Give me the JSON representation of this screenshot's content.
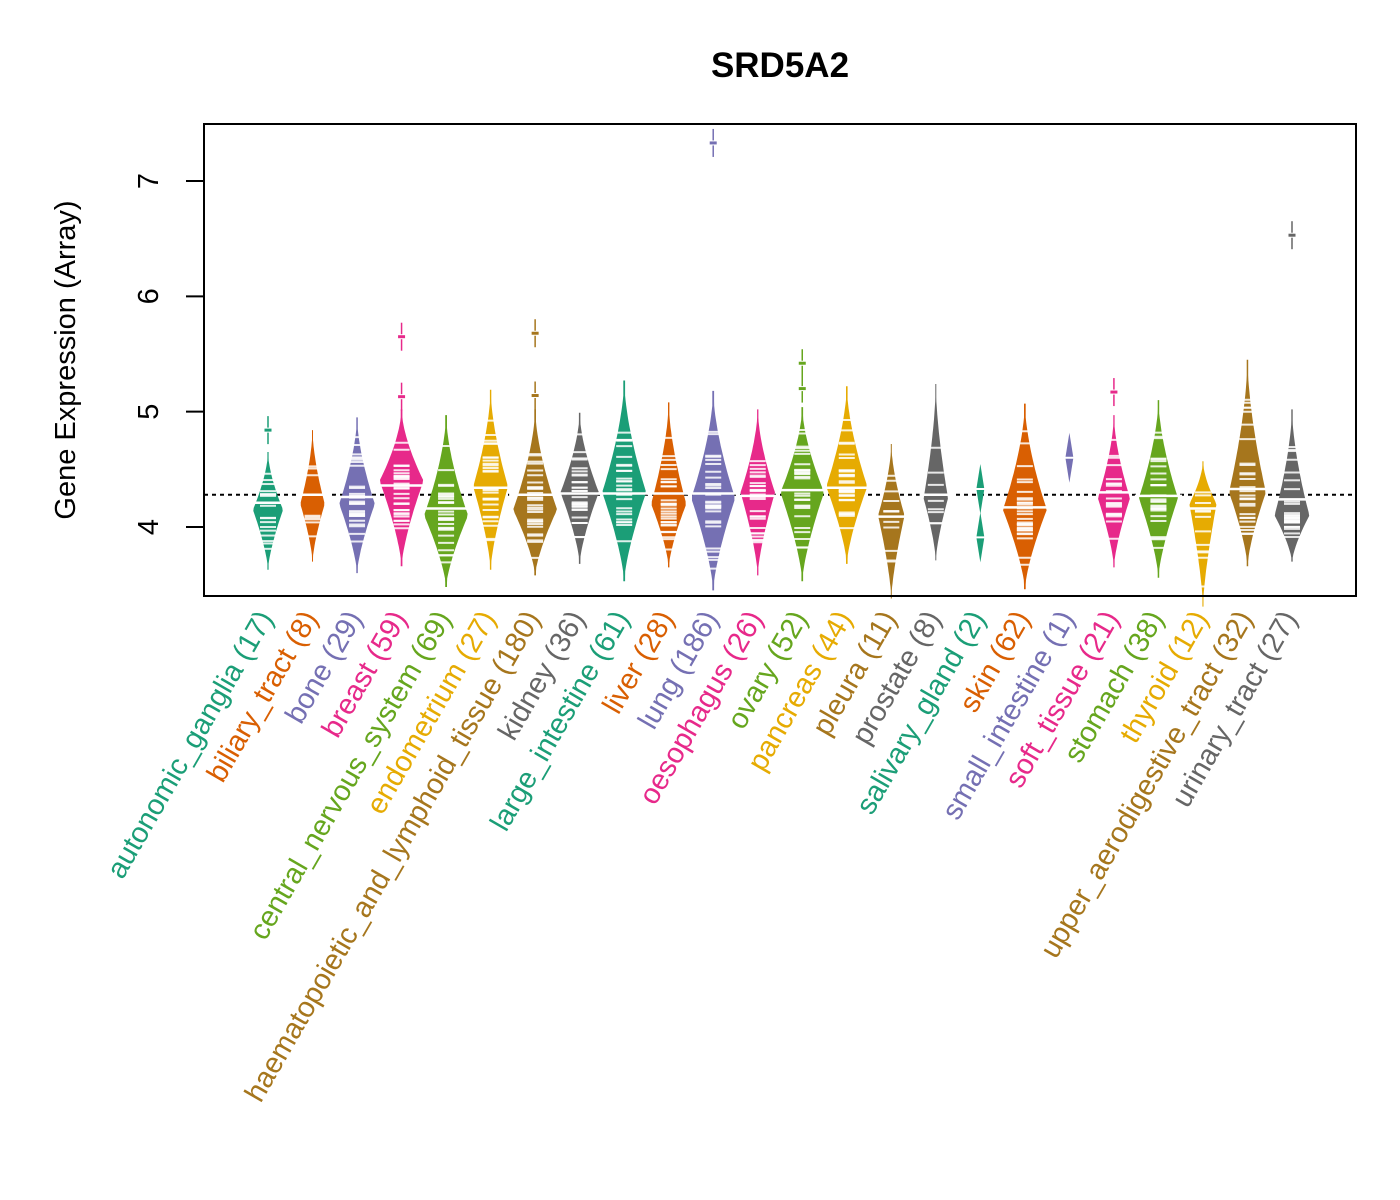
{
  "chart_data": {
    "type": "beanplot",
    "title": "SRD5A2",
    "xlabel": "",
    "ylabel": "Gene Expression (Array)",
    "ylim": [
      3.43,
      7.5
    ],
    "yticks": [
      4,
      5,
      6,
      7
    ],
    "grid": false,
    "reference_line": {
      "value": 4.28,
      "style": "dotted",
      "color": "#000000"
    },
    "label_rotation_deg": 60,
    "groups": [
      {
        "name": "autonomic_ganglia",
        "n": 17,
        "color": "#1B9E77",
        "median": 4.21,
        "min": 3.75,
        "max": 4.53,
        "peak": 4.15,
        "outliers": [
          4.84
        ]
      },
      {
        "name": "biliary_tract",
        "n": 8,
        "color": "#D95F02",
        "median": 4.28,
        "min": 3.82,
        "max": 4.72,
        "peak": 4.2,
        "outliers": []
      },
      {
        "name": "bone",
        "n": 29,
        "color": "#7570B3",
        "median": 4.26,
        "min": 3.72,
        "max": 4.83,
        "peak": 4.2,
        "outliers": []
      },
      {
        "name": "breast",
        "n": 59,
        "color": "#E7298A",
        "median": 4.36,
        "min": 3.78,
        "max": 4.9,
        "peak": 4.4,
        "outliers": [
          5.13,
          5.65
        ]
      },
      {
        "name": "central_nervous_system",
        "n": 69,
        "color": "#66A61E",
        "median": 4.16,
        "min": 3.6,
        "max": 4.85,
        "peak": 4.1,
        "outliers": []
      },
      {
        "name": "endometrium",
        "n": 27,
        "color": "#E6AB02",
        "median": 4.34,
        "min": 3.75,
        "max": 5.07,
        "peak": 4.35,
        "outliers": []
      },
      {
        "name": "haematopoietic_and_lymphoid_tissue",
        "n": 180,
        "color": "#A6761D",
        "median": 4.28,
        "min": 3.7,
        "max": 4.9,
        "peak": 4.15,
        "outliers": [
          5.14,
          5.68
        ]
      },
      {
        "name": "kidney",
        "n": 36,
        "color": "#666666",
        "median": 4.29,
        "min": 3.8,
        "max": 4.87,
        "peak": 4.3,
        "outliers": []
      },
      {
        "name": "large_intestine",
        "n": 61,
        "color": "#1B9E77",
        "median": 4.29,
        "min": 3.65,
        "max": 5.15,
        "peak": 4.3,
        "outliers": []
      },
      {
        "name": "liver",
        "n": 28,
        "color": "#D95F02",
        "median": 4.29,
        "min": 3.77,
        "max": 4.96,
        "peak": 4.2,
        "outliers": []
      },
      {
        "name": "lung",
        "n": 186,
        "color": "#7570B3",
        "median": 4.29,
        "min": 3.57,
        "max": 5.06,
        "peak": 4.25,
        "outliers": [
          7.33
        ]
      },
      {
        "name": "oesophagus",
        "n": 26,
        "color": "#E7298A",
        "median": 4.27,
        "min": 3.7,
        "max": 4.9,
        "peak": 4.3,
        "outliers": []
      },
      {
        "name": "ovary",
        "n": 52,
        "color": "#66A61E",
        "median": 4.32,
        "min": 3.65,
        "max": 4.92,
        "peak": 4.3,
        "outliers": [
          5.2,
          5.42
        ]
      },
      {
        "name": "pancreas",
        "n": 44,
        "color": "#E6AB02",
        "median": 4.34,
        "min": 3.8,
        "max": 5.1,
        "peak": 4.35,
        "outliers": []
      },
      {
        "name": "pleura",
        "n": 11,
        "color": "#A6761D",
        "median": 4.09,
        "min": 3.5,
        "max": 4.6,
        "peak": 4.1,
        "outliers": []
      },
      {
        "name": "prostate",
        "n": 8,
        "color": "#666666",
        "median": 4.28,
        "min": 3.83,
        "max": 5.12,
        "peak": 4.25,
        "outliers": []
      },
      {
        "name": "salivary_gland",
        "n": 2,
        "color": "#1B9E77",
        "median": 4.12,
        "min": 3.91,
        "max": 4.33,
        "peak": 4.33,
        "points": [
          4.33,
          3.91
        ],
        "outliers": []
      },
      {
        "name": "skin",
        "n": 62,
        "color": "#D95F02",
        "median": 4.17,
        "min": 3.58,
        "max": 4.95,
        "peak": 4.15,
        "outliers": []
      },
      {
        "name": "small_intestine",
        "n": 1,
        "color": "#7570B3",
        "median": 4.6,
        "min": 4.6,
        "max": 4.6,
        "peak": 4.6,
        "points": [
          4.6
        ],
        "outliers": []
      },
      {
        "name": "soft_tissue",
        "n": 21,
        "color": "#E7298A",
        "median": 4.3,
        "min": 3.77,
        "max": 4.85,
        "peak": 4.25,
        "outliers": [
          5.17
        ]
      },
      {
        "name": "stomach",
        "n": 38,
        "color": "#66A61E",
        "median": 4.27,
        "min": 3.68,
        "max": 4.98,
        "peak": 4.25,
        "outliers": []
      },
      {
        "name": "thyroid",
        "n": 12,
        "color": "#E6AB02",
        "median": 4.16,
        "min": 3.43,
        "max": 4.45,
        "peak": 4.2,
        "outliers": []
      },
      {
        "name": "upper_aerodigestive_tract",
        "n": 32,
        "color": "#A6761D",
        "median": 4.33,
        "min": 3.78,
        "max": 5.33,
        "peak": 4.3,
        "outliers": []
      },
      {
        "name": "urinary_tract",
        "n": 27,
        "color": "#666666",
        "median": 4.24,
        "min": 3.82,
        "max": 4.9,
        "peak": 4.1,
        "outliers": [
          6.53
        ]
      }
    ]
  }
}
